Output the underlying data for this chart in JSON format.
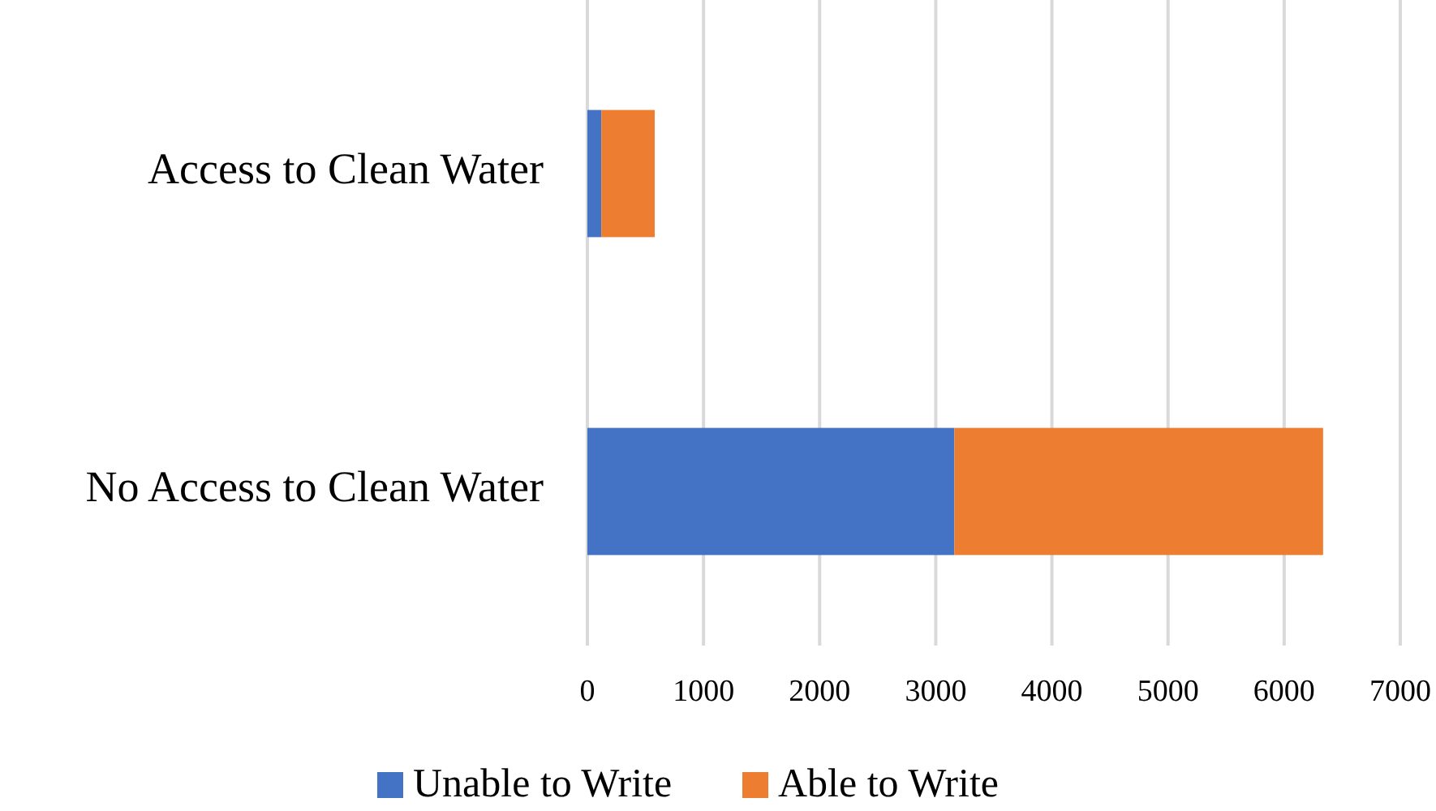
{
  "chart_data": {
    "type": "bar",
    "orientation": "horizontal",
    "stacked": true,
    "categories": [
      "Access to Clean Water",
      "No Access to Clean Water"
    ],
    "series": [
      {
        "name": "Unable to Write",
        "color": "#4472c4",
        "values": [
          120,
          3160
        ]
      },
      {
        "name": "Able to Write",
        "color": "#ed7d31",
        "values": [
          460,
          3175
        ]
      }
    ],
    "xlim": [
      0,
      7000
    ],
    "xticks": [
      0,
      1000,
      2000,
      3000,
      4000,
      5000,
      6000,
      7000
    ],
    "grid": "x",
    "legend": "bottom"
  }
}
